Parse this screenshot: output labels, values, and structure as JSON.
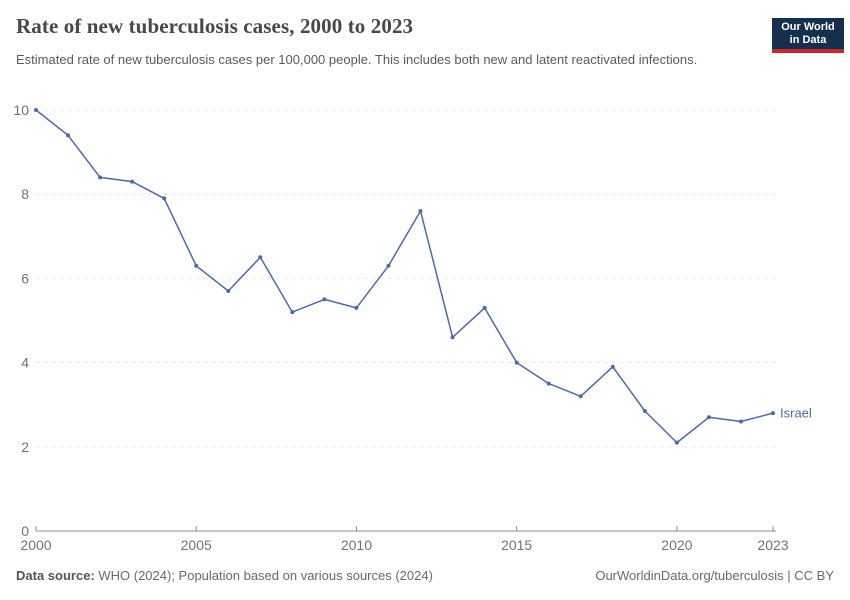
{
  "header": {
    "title": "Rate of new tuberculosis cases, 2000 to 2023",
    "subtitle": "Estimated rate of new tuberculosis cases per 100,000 people. This includes both new and latent reactivated infections.",
    "logo": {
      "line1": "Our World",
      "line2": "in Data"
    }
  },
  "footer": {
    "source_label": "Data source:",
    "source_text": " WHO (2024); Population based on various sources (2024)",
    "link_text": "OurWorldinData.org/tuberculosis | CC BY"
  },
  "colors": {
    "line": "#4a6bab",
    "grid": "#e2e2e2",
    "axis": "#8f8f8f",
    "tick_label": "#737373",
    "logo_bg": "#15304f",
    "logo_red": "#d1232a"
  },
  "chart_data": {
    "type": "line",
    "title": "Rate of new tuberculosis cases, 2000 to 2023",
    "xlabel": "",
    "ylabel": "Estimated rate of new tuberculosis cases per 100,000 people",
    "xlim": [
      2000,
      2023
    ],
    "ylim": [
      0,
      10
    ],
    "xticks": [
      2000,
      2005,
      2010,
      2015,
      2020,
      2023
    ],
    "yticks": [
      0,
      2,
      4,
      6,
      8,
      10
    ],
    "grid": "dashed-horizontal",
    "legend_position": "end-of-line",
    "series": [
      {
        "name": "Israel",
        "x": [
          2000,
          2001,
          2002,
          2003,
          2004,
          2005,
          2006,
          2007,
          2008,
          2009,
          2010,
          2011,
          2012,
          2013,
          2014,
          2015,
          2016,
          2017,
          2018,
          2019,
          2020,
          2021,
          2022,
          2023
        ],
        "values": [
          10,
          9.4,
          8.4,
          8.3,
          7.9,
          6.3,
          5.7,
          6.5,
          5.2,
          5.5,
          5.3,
          6.3,
          7.6,
          4.6,
          5.3,
          4.0,
          3.5,
          3.2,
          3.9,
          2.85,
          2.1,
          2.7,
          2.6,
          2.8
        ]
      }
    ]
  }
}
